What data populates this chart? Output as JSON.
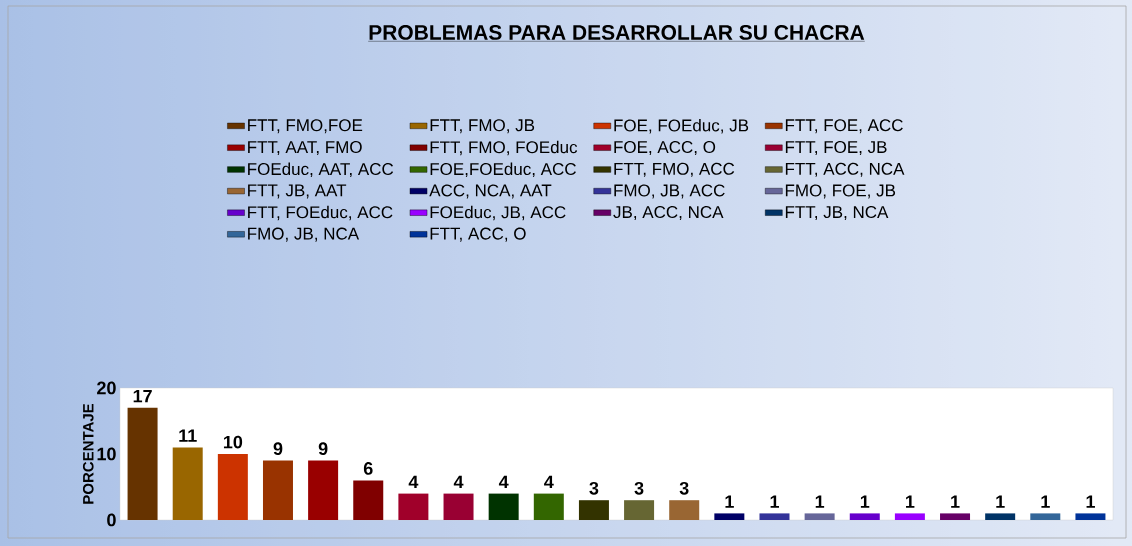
{
  "chart_data": {
    "type": "bar",
    "title": "PROBLEMAS PARA DESARROLLAR SU CHACRA",
    "ylabel": "PORCENTAJE",
    "stacked": true,
    "categories": [
      null,
      null,
      null,
      null,
      null,
      null,
      null,
      null,
      null,
      null,
      null,
      null,
      null,
      null,
      null,
      null,
      null,
      null,
      null,
      null,
      null,
      null
    ],
    "series": [
      {
        "name": "FTT, FMO,FOE",
        "color": "#663300",
        "values": [
          17,
          null,
          null,
          null,
          null,
          null,
          null,
          null,
          null,
          null,
          null,
          null,
          null,
          null,
          null,
          null,
          null,
          null,
          null,
          null,
          null,
          null
        ]
      },
      {
        "name": "FTT, FMO, JB",
        "color": "#996600",
        "values": [
          null,
          11,
          null,
          null,
          null,
          null,
          null,
          null,
          null,
          null,
          null,
          null,
          null,
          null,
          null,
          null,
          null,
          null,
          null,
          null,
          null,
          null
        ]
      },
      {
        "name": "FOE, FOEduc, JB",
        "color": "#cc3300",
        "values": [
          null,
          null,
          10,
          null,
          null,
          null,
          null,
          null,
          null,
          null,
          null,
          null,
          null,
          null,
          null,
          null,
          null,
          null,
          null,
          null,
          null,
          null
        ]
      },
      {
        "name": "FTT, FOE, ACC",
        "color": "#993300",
        "values": [
          null,
          null,
          null,
          9,
          null,
          null,
          null,
          null,
          null,
          null,
          null,
          null,
          null,
          null,
          null,
          null,
          null,
          null,
          null,
          null,
          null,
          null
        ]
      },
      {
        "name": "FTT, AAT, FMO",
        "color": "#990000",
        "values": [
          null,
          null,
          null,
          null,
          9,
          null,
          null,
          null,
          null,
          null,
          null,
          null,
          null,
          null,
          null,
          null,
          null,
          null,
          null,
          null,
          null,
          null
        ]
      },
      {
        "name": "FTT, FMO, FOEduc",
        "color": "#800000",
        "values": [
          null,
          null,
          null,
          null,
          null,
          6,
          null,
          null,
          null,
          null,
          null,
          null,
          null,
          null,
          null,
          null,
          null,
          null,
          null,
          null,
          null,
          null
        ]
      },
      {
        "name": "FOE, ACC, O",
        "color": "#a0002a",
        "values": [
          null,
          null,
          null,
          null,
          null,
          null,
          4,
          null,
          null,
          null,
          null,
          null,
          null,
          null,
          null,
          null,
          null,
          null,
          null,
          null,
          null,
          null
        ]
      },
      {
        "name": "FTT, FOE, JB",
        "color": "#990033",
        "values": [
          null,
          null,
          null,
          null,
          null,
          null,
          null,
          4,
          null,
          null,
          null,
          null,
          null,
          null,
          null,
          null,
          null,
          null,
          null,
          null,
          null,
          null
        ]
      },
      {
        "name": "FOEduc, AAT, ACC",
        "color": "#003300",
        "values": [
          null,
          null,
          null,
          null,
          null,
          null,
          null,
          null,
          4,
          null,
          null,
          null,
          null,
          null,
          null,
          null,
          null,
          null,
          null,
          null,
          null,
          null
        ]
      },
      {
        "name": "FOE,FOEduc, ACC",
        "color": "#336600",
        "values": [
          null,
          null,
          null,
          null,
          null,
          null,
          null,
          null,
          null,
          4,
          null,
          null,
          null,
          null,
          null,
          null,
          null,
          null,
          null,
          null,
          null,
          null
        ]
      },
      {
        "name": "FTT, FMO, ACC",
        "color": "#333300",
        "values": [
          null,
          null,
          null,
          null,
          null,
          null,
          null,
          null,
          null,
          null,
          3,
          null,
          null,
          null,
          null,
          null,
          null,
          null,
          null,
          null,
          null,
          null
        ]
      },
      {
        "name": "FTT, ACC, NCA",
        "color": "#666633",
        "values": [
          null,
          null,
          null,
          null,
          null,
          null,
          null,
          null,
          null,
          null,
          null,
          3,
          null,
          null,
          null,
          null,
          null,
          null,
          null,
          null,
          null,
          null
        ]
      },
      {
        "name": "FTT, JB, AAT",
        "color": "#996633",
        "values": [
          null,
          null,
          null,
          null,
          null,
          null,
          null,
          null,
          null,
          null,
          null,
          null,
          3,
          null,
          null,
          null,
          null,
          null,
          null,
          null,
          null,
          null
        ]
      },
      {
        "name": "ACC, NCA, AAT",
        "color": "#000066",
        "values": [
          null,
          null,
          null,
          null,
          null,
          null,
          null,
          null,
          null,
          null,
          null,
          null,
          null,
          1,
          null,
          null,
          null,
          null,
          null,
          null,
          null,
          null
        ]
      },
      {
        "name": "FMO, JB, ACC",
        "color": "#333399",
        "values": [
          null,
          null,
          null,
          null,
          null,
          null,
          null,
          null,
          null,
          null,
          null,
          null,
          null,
          null,
          1,
          null,
          null,
          null,
          null,
          null,
          null,
          null
        ]
      },
      {
        "name": "FMO, FOE, JB",
        "color": "#666699",
        "values": [
          null,
          null,
          null,
          null,
          null,
          null,
          null,
          null,
          null,
          null,
          null,
          null,
          null,
          null,
          null,
          1,
          null,
          null,
          null,
          null,
          null,
          null
        ]
      },
      {
        "name": "FTT, FOEduc, ACC",
        "color": "#6600cc",
        "values": [
          null,
          null,
          null,
          null,
          null,
          null,
          null,
          null,
          null,
          null,
          null,
          null,
          null,
          null,
          null,
          null,
          1,
          null,
          null,
          null,
          null,
          null
        ]
      },
      {
        "name": "FOEduc, JB, ACC",
        "color": "#9900ff",
        "values": [
          null,
          null,
          null,
          null,
          null,
          null,
          null,
          null,
          null,
          null,
          null,
          null,
          null,
          null,
          null,
          null,
          null,
          1,
          null,
          null,
          null,
          null
        ]
      },
      {
        "name": "JB, ACC, NCA",
        "color": "#660066",
        "values": [
          null,
          null,
          null,
          null,
          null,
          null,
          null,
          null,
          null,
          null,
          null,
          null,
          null,
          null,
          null,
          null,
          null,
          null,
          1,
          null,
          null,
          null
        ]
      },
      {
        "name": "FTT, JB, NCA",
        "color": "#003366",
        "values": [
          null,
          null,
          null,
          null,
          null,
          null,
          null,
          null,
          null,
          null,
          null,
          null,
          null,
          null,
          null,
          null,
          null,
          null,
          null,
          1,
          null,
          null
        ]
      },
      {
        "name": "FMO, JB, NCA",
        "color": "#336699",
        "values": [
          null,
          null,
          null,
          null,
          null,
          null,
          null,
          null,
          null,
          null,
          null,
          null,
          null,
          null,
          null,
          null,
          null,
          null,
          null,
          null,
          1,
          null
        ]
      },
      {
        "name": "FTT, ACC, O",
        "color": "#003399",
        "values": [
          null,
          null,
          null,
          null,
          null,
          null,
          null,
          null,
          null,
          null,
          null,
          null,
          null,
          null,
          null,
          null,
          null,
          null,
          null,
          null,
          null,
          1
        ]
      }
    ],
    "ylim": [
      0,
      20
    ],
    "yticks": [
      0,
      10,
      20
    ],
    "legend": "top",
    "data_labels": true
  }
}
